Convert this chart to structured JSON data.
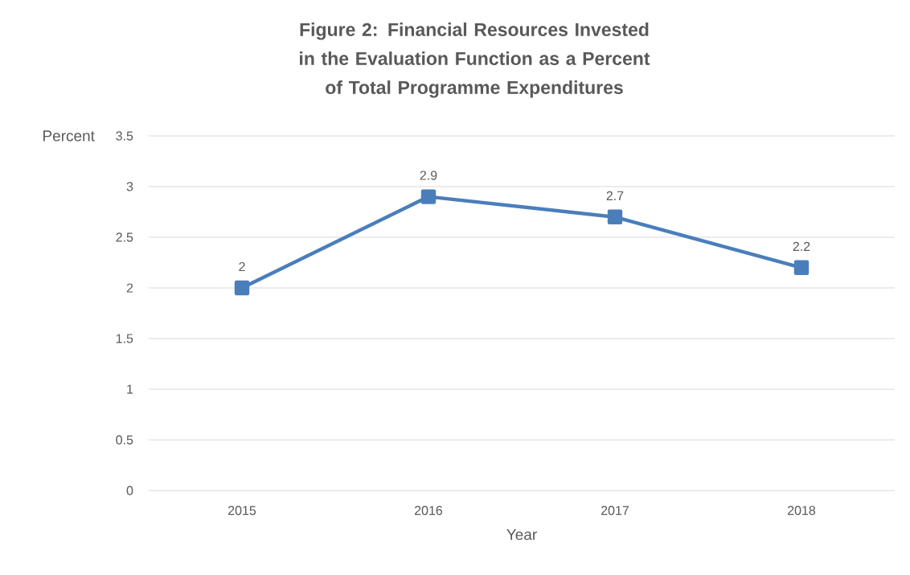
{
  "chart_data": {
    "type": "line",
    "title": "Figure 2:  Financial Resources Invested in the Evaluation Function as a Percent of Total Programme Expenditures",
    "xlabel": "Year",
    "ylabel": "Percent",
    "categories": [
      "2015",
      "2016",
      "2017",
      "2018"
    ],
    "series": [
      {
        "color": "#4a7ebb",
        "values": [
          2,
          2.9,
          2.7,
          2.2
        ]
      }
    ],
    "ylim": [
      0,
      3.5
    ],
    "yticks": [
      0,
      0.5,
      1,
      1.5,
      2,
      2.5,
      3,
      3.5
    ],
    "grid": "y",
    "marker": "square",
    "line_style": "solid",
    "data_labels": true
  }
}
